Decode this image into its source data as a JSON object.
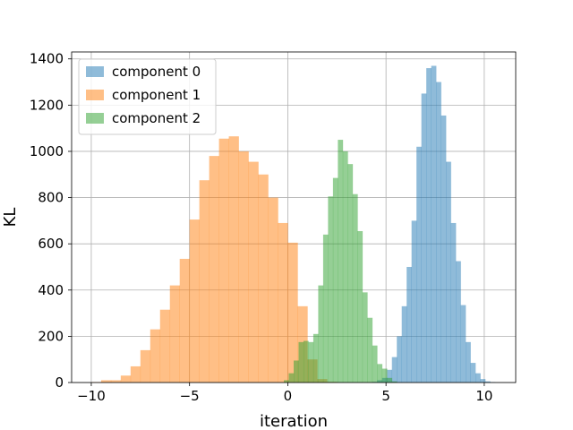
{
  "chart_data": {
    "type": "bar",
    "subtype": "histogram",
    "xlabel": "iteration",
    "ylabel": "KL",
    "xlim": [
      -11.0,
      11.6
    ],
    "ylim": [
      0,
      1430
    ],
    "xticks": [
      -10,
      -5,
      0,
      5,
      10
    ],
    "yticks": [
      0,
      200,
      400,
      600,
      800,
      1000,
      1200,
      1400
    ],
    "grid": true,
    "legend_position": "top-left",
    "colors": {
      "component_0": "#1f77b4",
      "component_1": "#ff7f0e",
      "component_2": "#2ca02c"
    },
    "bar_alpha": 0.5,
    "series": [
      {
        "name": "component 0",
        "bin_start": 4.3,
        "bin_width": 0.25,
        "values": [
          3,
          10,
          20,
          55,
          110,
          200,
          330,
          500,
          700,
          1020,
          1250,
          1360,
          1370,
          1300,
          1155,
          955,
          690,
          525,
          335,
          175,
          85,
          40,
          15,
          5,
          2
        ]
      },
      {
        "name": "component 1",
        "bin_start": -10.0,
        "bin_width": 0.5,
        "values": [
          2,
          10,
          10,
          30,
          70,
          140,
          230,
          315,
          420,
          535,
          705,
          875,
          980,
          1055,
          1065,
          1000,
          955,
          900,
          800,
          690,
          605,
          330,
          100,
          15,
          3
        ]
      },
      {
        "name": "component 2",
        "bin_start": -0.2,
        "bin_width": 0.25,
        "values": [
          10,
          40,
          95,
          175,
          180,
          175,
          210,
          420,
          640,
          805,
          885,
          1050,
          1000,
          945,
          815,
          655,
          390,
          280,
          160,
          80,
          60,
          20,
          5
        ]
      }
    ]
  }
}
